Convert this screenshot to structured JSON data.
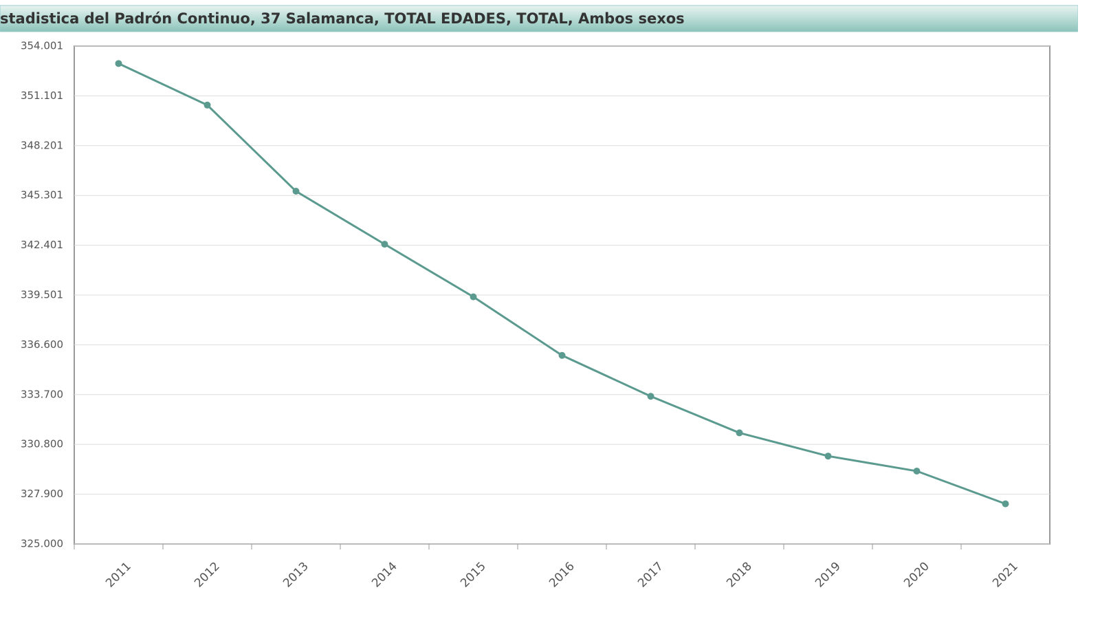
{
  "chart_data": {
    "type": "line",
    "title": "stadistica del Padrón Continuo, 37 Salamanca, TOTAL EDADES, TOTAL, Ambos sexos",
    "categories": [
      "2011",
      "2012",
      "2013",
      "2014",
      "2015",
      "2016",
      "2017",
      "2018",
      "2019",
      "2020",
      "2021"
    ],
    "series": [
      {
        "name": "Salamanca",
        "color": "#5b9a8f",
        "values": [
          352986,
          350564,
          345548,
          342459,
          339395,
          335985,
          333603,
          331473,
          330119,
          329245,
          327338
        ]
      }
    ],
    "ylim": [
      325000,
      354001
    ],
    "yticks": [
      {
        "value": 325000,
        "label": "325.000"
      },
      {
        "value": 327900,
        "label": "327.900"
      },
      {
        "value": 330800,
        "label": "330.800"
      },
      {
        "value": 333700,
        "label": "333.700"
      },
      {
        "value": 336600,
        "label": "336.600"
      },
      {
        "value": 339501,
        "label": "339.501"
      },
      {
        "value": 342401,
        "label": "342.401"
      },
      {
        "value": 345301,
        "label": "345.301"
      },
      {
        "value": 348201,
        "label": "348.201"
      },
      {
        "value": 351101,
        "label": "351.101"
      },
      {
        "value": 354001,
        "label": "354.001"
      }
    ],
    "grid": true
  }
}
